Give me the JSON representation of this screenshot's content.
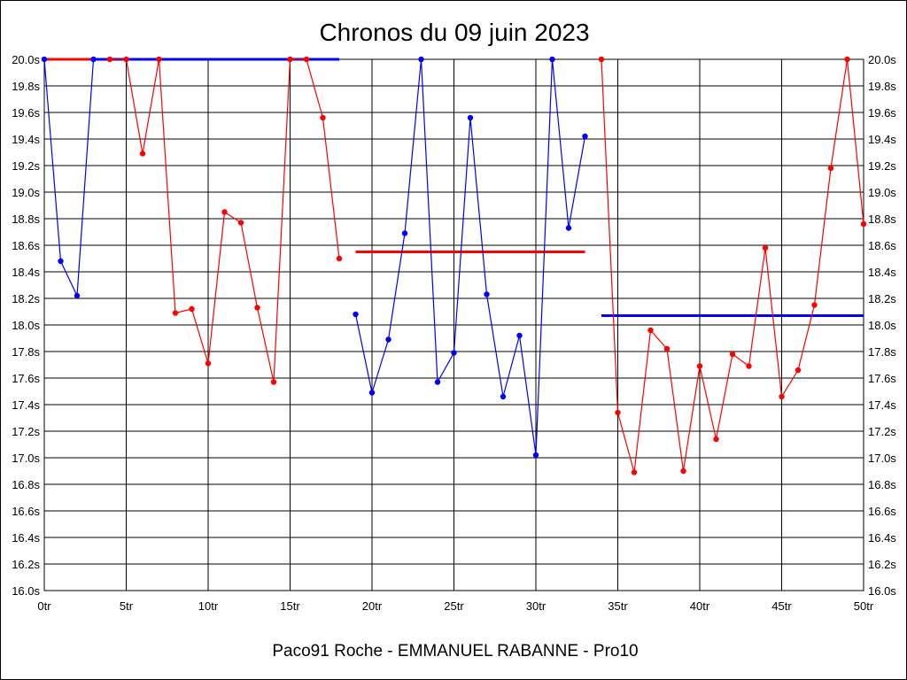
{
  "chart_data": {
    "type": "line",
    "title": "Chronos du 09 juin 2023",
    "footer": "Paco91 Roche - EMMANUEL RABANNE - Pro10",
    "x_tick_labels": [
      "0tr",
      "5tr",
      "10tr",
      "15tr",
      "20tr",
      "25tr",
      "30tr",
      "35tr",
      "40tr",
      "45tr",
      "50tr"
    ],
    "x_ticks": [
      0,
      5,
      10,
      15,
      20,
      25,
      30,
      35,
      40,
      45,
      50
    ],
    "y_tick_labels": [
      "16.0s",
      "16.2s",
      "16.4s",
      "16.6s",
      "16.8s",
      "17.0s",
      "17.2s",
      "17.4s",
      "17.6s",
      "17.8s",
      "18.0s",
      "18.2s",
      "18.4s",
      "18.6s",
      "18.8s",
      "19.0s",
      "19.2s",
      "19.4s",
      "19.6s",
      "19.8s",
      "20.0s"
    ],
    "y_ticks": [
      16.0,
      16.2,
      16.4,
      16.6,
      16.8,
      17.0,
      17.2,
      17.4,
      17.6,
      17.8,
      18.0,
      18.2,
      18.4,
      18.6,
      18.8,
      19.0,
      19.2,
      19.4,
      19.6,
      19.8,
      20.0
    ],
    "xlim": [
      0,
      50
    ],
    "ylim": [
      16.0,
      20.0
    ],
    "grid": true,
    "series": [
      {
        "color": "#0000ff",
        "points": [
          [
            0,
            20.0
          ],
          [
            1,
            18.48
          ],
          [
            2,
            18.22
          ],
          [
            3,
            20.0
          ]
        ]
      },
      {
        "color": "#ff0000",
        "points": [
          [
            4,
            20.0
          ],
          [
            5,
            20.0
          ],
          [
            6,
            19.29
          ],
          [
            7,
            20.0
          ],
          [
            8,
            18.09
          ],
          [
            9,
            18.12
          ],
          [
            10,
            17.71
          ],
          [
            11,
            18.85
          ],
          [
            12,
            18.77
          ],
          [
            13,
            18.13
          ],
          [
            14,
            17.57
          ],
          [
            15,
            20.0
          ],
          [
            16,
            20.0
          ],
          [
            17,
            19.56
          ],
          [
            18,
            18.5
          ]
        ]
      },
      {
        "color": "#0000ff",
        "points": [
          [
            19,
            18.08
          ],
          [
            20,
            17.49
          ],
          [
            21,
            17.89
          ],
          [
            22,
            18.69
          ],
          [
            23,
            20.0
          ],
          [
            24,
            17.57
          ],
          [
            25,
            17.79
          ],
          [
            26,
            19.56
          ],
          [
            27,
            18.23
          ],
          [
            28,
            17.46
          ],
          [
            29,
            17.92
          ],
          [
            30,
            17.02
          ],
          [
            31,
            20.0
          ],
          [
            32,
            18.73
          ],
          [
            33,
            19.42
          ]
        ]
      },
      {
        "color": "#ff0000",
        "points": [
          [
            34,
            20.0
          ],
          [
            35,
            17.34
          ],
          [
            36,
            16.89
          ],
          [
            37,
            17.96
          ],
          [
            38,
            17.82
          ],
          [
            39,
            16.9
          ],
          [
            40,
            17.69
          ],
          [
            41,
            17.14
          ],
          [
            42,
            17.78
          ],
          [
            43,
            17.69
          ],
          [
            44,
            18.58
          ],
          [
            45,
            17.46
          ],
          [
            46,
            17.66
          ],
          [
            47,
            18.15
          ],
          [
            48,
            19.18
          ],
          [
            49,
            20.0
          ],
          [
            50,
            18.76
          ]
        ]
      }
    ],
    "reference_lines": [
      {
        "color": "#0000ff",
        "x_start": 0,
        "x_end": 18,
        "y": 20.0
      },
      {
        "color": "#ff0000",
        "x_start": 0,
        "x_end": 3,
        "y": 20.0
      },
      {
        "color": "#ff0000",
        "x_start": 19,
        "x_end": 33,
        "y": 18.55
      },
      {
        "color": "#0000ff",
        "x_start": 34,
        "x_end": 50,
        "y": 18.07
      }
    ]
  }
}
